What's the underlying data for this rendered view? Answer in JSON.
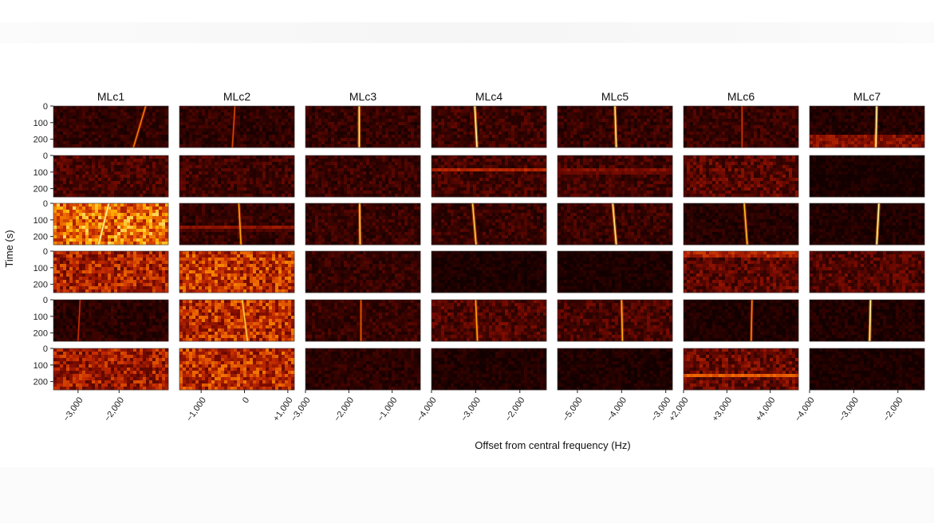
{
  "chart_data": {
    "type": "heatmap",
    "ylabel": "Time (s)",
    "xlabel": "Offset from central frequency (Hz)",
    "ylim": [
      0,
      250
    ],
    "y_ticks": [
      0,
      100,
      200
    ],
    "colormap": [
      "#120000",
      "#3a0300",
      "#7a0b00",
      "#c22a00",
      "#ee6a00",
      "#ffb000",
      "#fff3a0"
    ],
    "columns": [
      {
        "title": "MLc1",
        "xlim": [
          -3600,
          -800
        ],
        "x_ticks": [
          -3000,
          -2000
        ],
        "x_tick_labels": [
          "−3,000",
          "−2,000"
        ]
      },
      {
        "title": "MLc2",
        "xlim": [
          -1500,
          1150
        ],
        "x_ticks": [
          -1000,
          0,
          1000
        ],
        "x_tick_labels": [
          "−1,000",
          "0",
          "+1,000"
        ]
      },
      {
        "title": "MLc3",
        "xlim": [
          -3000,
          -350
        ],
        "x_ticks": [
          -3000,
          -2000,
          -1000
        ],
        "x_tick_labels": [
          "−3,000",
          "−2,000",
          "−1,000"
        ]
      },
      {
        "title": "MLc4",
        "xlim": [
          -4000,
          -1400
        ],
        "x_ticks": [
          -4000,
          -3000,
          -2000
        ],
        "x_tick_labels": [
          "−4,000",
          "−3,000",
          "−2,000"
        ]
      },
      {
        "title": "MLc5",
        "xlim": [
          -5450,
          -2850
        ],
        "x_ticks": [
          -5000,
          -4000,
          -3000
        ],
        "x_tick_labels": [
          "−5,000",
          "−4,000",
          "−3,000"
        ]
      },
      {
        "title": "MLc6",
        "xlim": [
          2000,
          4650
        ],
        "x_ticks": [
          2000,
          3000,
          4000
        ],
        "x_tick_labels": [
          "+2,000",
          "+3,000",
          "+4,000"
        ]
      },
      {
        "title": "MLc7",
        "xlim": [
          -4000,
          -1400
        ],
        "x_ticks": [
          -4000,
          -3000,
          -2000
        ],
        "x_tick_labels": [
          "−4,000",
          "−3,000",
          "−2,000"
        ]
      }
    ],
    "panels": [
      {
        "row": 0,
        "col": 0,
        "bg": 0.12,
        "signal": {
          "x0": -1350,
          "x1": -1650,
          "intensity": 0.55
        }
      },
      {
        "row": 0,
        "col": 1,
        "bg": 0.12,
        "signal": {
          "x0": -220,
          "x1": -280,
          "intensity": 0.35
        }
      },
      {
        "row": 0,
        "col": 2,
        "bg": 0.14,
        "signal": {
          "x0": -1760,
          "x1": -1760,
          "intensity": 0.95
        }
      },
      {
        "row": 0,
        "col": 3,
        "bg": 0.16,
        "signal": {
          "x0": -3020,
          "x1": -2970,
          "intensity": 1.0
        }
      },
      {
        "row": 0,
        "col": 4,
        "bg": 0.14,
        "signal": {
          "x0": -4150,
          "x1": -4120,
          "intensity": 0.95
        }
      },
      {
        "row": 0,
        "col": 5,
        "bg": 0.14,
        "signal": {
          "x0": 3350,
          "x1": 3350,
          "intensity": 0.3
        }
      },
      {
        "row": 0,
        "col": 6,
        "bg": 0.08,
        "signal": {
          "x0": -2480,
          "x1": -2500,
          "intensity": 1.0
        },
        "bottom_band": {
          "from": 180,
          "to": 250,
          "level": 0.35
        }
      },
      {
        "row": 1,
        "col": 0,
        "bg": 0.2
      },
      {
        "row": 1,
        "col": 1,
        "bg": 0.17
      },
      {
        "row": 1,
        "col": 2,
        "bg": 0.15
      },
      {
        "row": 1,
        "col": 3,
        "bg": 0.18,
        "band": {
          "t": 90,
          "level": 0.5
        }
      },
      {
        "row": 1,
        "col": 4,
        "bg": 0.17,
        "band": {
          "t": 95,
          "level": 0.5
        }
      },
      {
        "row": 1,
        "col": 5,
        "bg": 0.24
      },
      {
        "row": 1,
        "col": 6,
        "bg": 0.03
      },
      {
        "row": 2,
        "col": 0,
        "bg": 0.68,
        "signal": {
          "x0": -2250,
          "x1": -2500,
          "intensity": 1.0
        }
      },
      {
        "row": 2,
        "col": 1,
        "bg": 0.13,
        "signal": {
          "x0": -130,
          "x1": -80,
          "intensity": 0.7
        },
        "band": {
          "t": 150,
          "level": 0.45
        }
      },
      {
        "row": 2,
        "col": 2,
        "bg": 0.14,
        "signal": {
          "x0": -1750,
          "x1": -1740,
          "intensity": 0.85
        }
      },
      {
        "row": 2,
        "col": 3,
        "bg": 0.15,
        "signal": {
          "x0": -3070,
          "x1": -2990,
          "intensity": 0.85
        }
      },
      {
        "row": 2,
        "col": 4,
        "bg": 0.15,
        "signal": {
          "x0": -4200,
          "x1": -4120,
          "intensity": 0.95
        }
      },
      {
        "row": 2,
        "col": 5,
        "bg": 0.08,
        "signal": {
          "x0": 3400,
          "x1": 3470,
          "intensity": 0.8
        }
      },
      {
        "row": 2,
        "col": 6,
        "bg": 0.06,
        "signal": {
          "x0": -2430,
          "x1": -2480,
          "intensity": 1.0
        }
      },
      {
        "row": 3,
        "col": 0,
        "bg": 0.45
      },
      {
        "row": 3,
        "col": 1,
        "bg": 0.52
      },
      {
        "row": 3,
        "col": 2,
        "bg": 0.14
      },
      {
        "row": 3,
        "col": 3,
        "bg": 0.04
      },
      {
        "row": 3,
        "col": 4,
        "bg": 0.04
      },
      {
        "row": 3,
        "col": 5,
        "bg": 0.25,
        "top_band": {
          "from": 0,
          "to": 40,
          "level": 0.45
        }
      },
      {
        "row": 3,
        "col": 6,
        "bg": 0.22
      },
      {
        "row": 4,
        "col": 0,
        "bg": 0.1,
        "signal": {
          "x0": -2950,
          "x1": -3000,
          "intensity": 0.25
        }
      },
      {
        "row": 4,
        "col": 1,
        "bg": 0.5,
        "signal": {
          "x0": -50,
          "x1": 70,
          "intensity": 0.85
        }
      },
      {
        "row": 4,
        "col": 2,
        "bg": 0.14,
        "signal": {
          "x0": -1720,
          "x1": -1720,
          "intensity": 0.45
        }
      },
      {
        "row": 4,
        "col": 3,
        "bg": 0.22,
        "signal": {
          "x0": -3000,
          "x1": -2960,
          "intensity": 0.7
        }
      },
      {
        "row": 4,
        "col": 4,
        "bg": 0.2,
        "signal": {
          "x0": -4000,
          "x1": -3980,
          "intensity": 0.75
        }
      },
      {
        "row": 4,
        "col": 5,
        "bg": 0.05,
        "signal": {
          "x0": 3580,
          "x1": 3560,
          "intensity": 0.6
        }
      },
      {
        "row": 4,
        "col": 6,
        "bg": 0.06,
        "signal": {
          "x0": -2620,
          "x1": -2640,
          "intensity": 1.0
        }
      },
      {
        "row": 5,
        "col": 0,
        "bg": 0.42
      },
      {
        "row": 5,
        "col": 1,
        "bg": 0.5
      },
      {
        "row": 5,
        "col": 2,
        "bg": 0.1
      },
      {
        "row": 5,
        "col": 3,
        "bg": 0.06
      },
      {
        "row": 5,
        "col": 4,
        "bg": 0.05
      },
      {
        "row": 5,
        "col": 5,
        "bg": 0.28,
        "band": {
          "t": 160,
          "level": 0.7
        }
      },
      {
        "row": 5,
        "col": 6,
        "bg": 0.04
      }
    ]
  }
}
